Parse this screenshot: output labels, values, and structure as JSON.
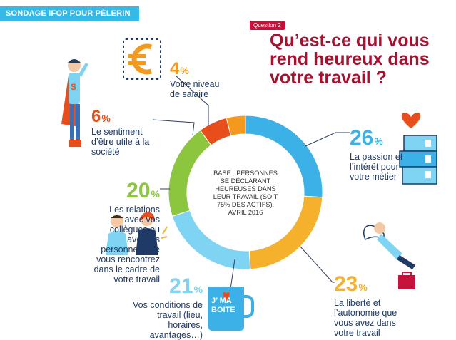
{
  "tag": "SONDAGE IFOP POUR PÈLERIN",
  "question_tag": "Question 2",
  "question": "Qu’est-ce qui vous rend heureux dans votre travail ?",
  "base_note": "BASE : PERSONNES SE DÉCLARANT HEUREUSES DANS LEUR TRAVAIL (SOIT 75% DES ACTIFS), AVRIL 2016",
  "mug_text": "J’ MA BOITE",
  "colors": {
    "blue": "#3bb1e8",
    "orange": "#f5b12c",
    "lightblue": "#7fd3f3",
    "green": "#8cc63f",
    "red": "#e84e1b",
    "darkorange": "#f39a1e",
    "title": "#a8102f",
    "label": "#1f3a67"
  },
  "items": {
    "salary": {
      "pct": "4",
      "sym": "%",
      "label": "Votre niveau de salaire",
      "icon": "euro-icon"
    },
    "useful": {
      "pct": "6",
      "sym": "%",
      "label": "Le sentiment d’être utile à la société",
      "icon": "superhero-icon"
    },
    "passion": {
      "pct": "26",
      "sym": "%",
      "label": "La passion et l’intérêt pour votre métier",
      "icon": "binders-heart-icon"
    },
    "freedom": {
      "pct": "23",
      "sym": "%",
      "label": "La liberté et l’autonomie que vous avez dans votre travail",
      "icon": "flying-man-icon"
    },
    "conditions": {
      "pct": "21",
      "sym": "%",
      "label": "Vos conditions de travail (lieu, horaires, avantages…)",
      "icon": "mug-icon"
    },
    "relations": {
      "pct": "20",
      "sym": "%",
      "label": "Les relations avec vos collègues ou avec les personnes que vous rencontrez dans le cadre de votre travail",
      "icon": "colleagues-icon"
    }
  },
  "chart_data": {
    "type": "pie",
    "title": "Qu’est-ce qui vous rend heureux dans votre travail ?",
    "categories": [
      "La passion et l’intérêt pour votre métier",
      "La liberté et l’autonomie que vous avez dans votre travail",
      "Vos conditions de travail (lieu, horaires, avantages…)",
      "Les relations avec vos collègues ou avec les personnes que vous rencontrez dans le cadre de votre travail",
      "Le sentiment d’être utile à la société",
      "Votre niveau de salaire"
    ],
    "values": [
      26,
      23,
      21,
      20,
      6,
      4
    ],
    "colors": [
      "#3bb1e8",
      "#f5b12c",
      "#7fd3f3",
      "#8cc63f",
      "#e84e1b",
      "#f39a1e"
    ],
    "style": "donut"
  }
}
